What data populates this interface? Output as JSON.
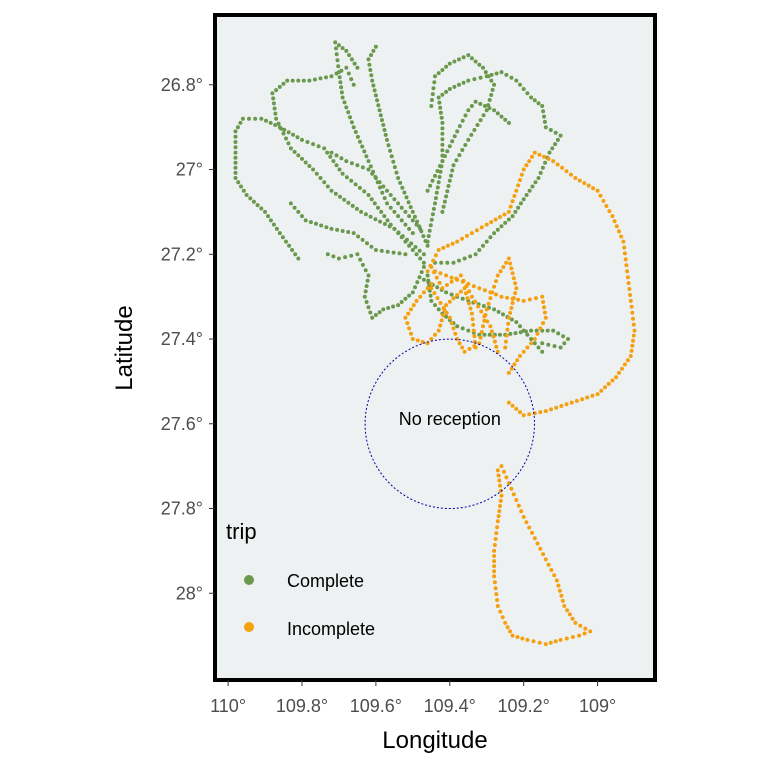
{
  "chart_data": {
    "type": "scatter",
    "xlabel": "Longitude",
    "ylabel": "Latitude",
    "x_reversed": true,
    "y_reversed": true,
    "xlim": [
      110.03,
      108.85
    ],
    "ylim": [
      26.64,
      28.2
    ],
    "x_ticks": [
      110,
      109.8,
      109.6,
      109.4,
      109.2,
      109
    ],
    "x_tick_labels": [
      "110°",
      "109.8°",
      "109.6°",
      "109.4°",
      "109.2°",
      "109°"
    ],
    "y_ticks": [
      26.8,
      27,
      27.2,
      27.4,
      27.6,
      27.8,
      28
    ],
    "y_tick_labels": [
      "26.8°",
      "27°",
      "27.2°",
      "27.4°",
      "27.6°",
      "27.8°",
      "28°"
    ],
    "panel_background": "#edf1f2",
    "grid": false,
    "legend": {
      "title": "trip",
      "placement": "bottom-left",
      "entries": [
        "Complete",
        "Incomplete"
      ]
    },
    "annotation": {
      "label": "No reception",
      "shape": "circle",
      "center": [
        109.4,
        27.6
      ],
      "radius": 0.2,
      "color": "#0000aa"
    },
    "series": [
      {
        "name": "Complete",
        "color": "#6a994e",
        "paths": [
          [
            [
              109.47,
              27.22
            ],
            [
              109.56,
              27.13
            ],
            [
              109.62,
              27.06
            ],
            [
              109.69,
              27.01
            ],
            [
              109.74,
              26.95
            ],
            [
              109.8,
              26.93
            ],
            [
              109.86,
              26.9
            ],
            [
              109.91,
              26.88
            ],
            [
              109.96,
              26.88
            ],
            [
              109.98,
              26.91
            ],
            [
              109.98,
              26.96
            ],
            [
              109.98,
              27.02
            ],
            [
              109.95,
              27.06
            ],
            [
              109.9,
              27.1
            ],
            [
              109.86,
              27.15
            ],
            [
              109.81,
              27.21
            ]
          ],
          [
            [
              109.47,
              27.2
            ],
            [
              109.55,
              27.14
            ],
            [
              109.64,
              27.1
            ],
            [
              109.72,
              27.05
            ],
            [
              109.77,
              27.0
            ],
            [
              109.83,
              26.95
            ],
            [
              109.87,
              26.88
            ],
            [
              109.88,
              26.82
            ],
            [
              109.84,
              26.79
            ],
            [
              109.78,
              26.79
            ],
            [
              109.72,
              26.78
            ],
            [
              109.68,
              26.76
            ],
            [
              109.66,
              26.8
            ]
          ],
          [
            [
              109.5,
              27.15
            ],
            [
              109.57,
              27.08
            ],
            [
              109.62,
              26.98
            ],
            [
              109.66,
              26.9
            ],
            [
              109.69,
              26.83
            ],
            [
              109.7,
              26.77
            ],
            [
              109.71,
              26.7
            ],
            [
              109.68,
              26.72
            ],
            [
              109.65,
              26.76
            ]
          ],
          [
            [
              109.46,
              27.18
            ],
            [
              109.5,
              27.1
            ],
            [
              109.54,
              27.02
            ],
            [
              109.57,
              26.93
            ],
            [
              109.59,
              26.86
            ],
            [
              109.61,
              26.79
            ],
            [
              109.62,
              26.74
            ],
            [
              109.6,
              26.71
            ]
          ],
          [
            [
              109.46,
              27.17
            ],
            [
              109.44,
              27.08
            ],
            [
              109.42,
              26.98
            ],
            [
              109.42,
              26.89
            ],
            [
              109.43,
              26.83
            ],
            [
              109.4,
              26.81
            ],
            [
              109.35,
              26.79
            ],
            [
              109.3,
              26.78
            ],
            [
              109.26,
              26.77
            ],
            [
              109.22,
              26.79
            ],
            [
              109.18,
              26.83
            ],
            [
              109.15,
              26.85
            ],
            [
              109.14,
              26.9
            ],
            [
              109.1,
              26.92
            ],
            [
              109.13,
              26.96
            ],
            [
              109.16,
              27.02
            ],
            [
              109.2,
              27.07
            ],
            [
              109.23,
              27.11
            ],
            [
              109.28,
              27.15
            ],
            [
              109.33,
              27.2
            ],
            [
              109.39,
              27.22
            ],
            [
              109.44,
              27.22
            ]
          ],
          [
            [
              109.42,
              27.1
            ],
            [
              109.39,
              26.99
            ],
            [
              109.35,
              26.93
            ],
            [
              109.3,
              26.86
            ],
            [
              109.28,
              26.8
            ],
            [
              109.31,
              26.76
            ],
            [
              109.35,
              26.73
            ],
            [
              109.4,
              26.75
            ],
            [
              109.44,
              26.78
            ],
            [
              109.45,
              26.85
            ]
          ],
          [
            [
              109.46,
              27.05
            ],
            [
              109.42,
              26.98
            ],
            [
              109.38,
              26.91
            ],
            [
              109.35,
              26.86
            ],
            [
              109.33,
              26.84
            ],
            [
              109.28,
              26.86
            ],
            [
              109.24,
              26.89
            ]
          ],
          [
            [
              109.46,
              27.25
            ],
            [
              109.45,
              27.31
            ],
            [
              109.42,
              27.34
            ],
            [
              109.38,
              27.37
            ],
            [
              109.32,
              27.39
            ],
            [
              109.25,
              27.39
            ],
            [
              109.18,
              27.38
            ],
            [
              109.12,
              27.38
            ],
            [
              109.08,
              27.4
            ],
            [
              109.1,
              27.42
            ],
            [
              109.15,
              27.41
            ]
          ],
          [
            [
              109.47,
              27.26
            ],
            [
              109.41,
              27.29
            ],
            [
              109.35,
              27.31
            ],
            [
              109.28,
              27.33
            ],
            [
              109.22,
              27.36
            ],
            [
              109.18,
              27.4
            ],
            [
              109.15,
              27.43
            ]
          ],
          [
            [
              109.47,
              27.23
            ],
            [
              109.5,
              27.29
            ],
            [
              109.54,
              27.32
            ],
            [
              109.58,
              27.33
            ],
            [
              109.61,
              27.35
            ],
            [
              109.63,
              27.3
            ],
            [
              109.62,
              27.25
            ],
            [
              109.65,
              27.2
            ],
            [
              109.7,
              27.21
            ],
            [
              109.73,
              27.2
            ]
          ],
          [
            [
              109.52,
              27.2
            ],
            [
              109.6,
              27.19
            ],
            [
              109.66,
              27.15
            ],
            [
              109.72,
              27.14
            ],
            [
              109.79,
              27.12
            ],
            [
              109.83,
              27.08
            ]
          ],
          [
            [
              109.48,
              27.14
            ],
            [
              109.55,
              27.07
            ],
            [
              109.62,
              27.0
            ],
            [
              109.68,
              26.98
            ],
            [
              109.72,
              26.96
            ]
          ]
        ]
      },
      {
        "name": "Incomplete",
        "color": "#f5a011",
        "paths": [
          [
            [
              109.46,
              27.24
            ],
            [
              109.43,
              27.19
            ],
            [
              109.38,
              27.17
            ],
            [
              109.34,
              27.15
            ],
            [
              109.3,
              27.13
            ],
            [
              109.24,
              27.1
            ],
            [
              109.22,
              27.05
            ],
            [
              109.2,
              27.0
            ],
            [
              109.17,
              26.96
            ],
            [
              109.12,
              26.98
            ],
            [
              109.06,
              27.02
            ],
            [
              109.0,
              27.05
            ],
            [
              108.96,
              27.11
            ],
            [
              108.93,
              27.17
            ],
            [
              108.92,
              27.24
            ],
            [
              108.91,
              27.31
            ],
            [
              108.9,
              27.38
            ],
            [
              108.91,
              27.44
            ],
            [
              108.95,
              27.49
            ],
            [
              109.0,
              27.53
            ],
            [
              109.07,
              27.55
            ],
            [
              109.14,
              27.57
            ],
            [
              109.2,
              27.58
            ],
            [
              109.24,
              27.55
            ]
          ],
          [
            [
              109.44,
              27.24
            ],
            [
              109.38,
              27.26
            ],
            [
              109.32,
              27.28
            ],
            [
              109.26,
              27.3
            ],
            [
              109.2,
              27.31
            ],
            [
              109.15,
              27.3
            ],
            [
              109.14,
              27.35
            ],
            [
              109.17,
              27.4
            ],
            [
              109.21,
              27.44
            ],
            [
              109.24,
              27.48
            ]
          ],
          [
            [
              109.45,
              27.28
            ],
            [
              109.4,
              27.35
            ],
            [
              109.38,
              27.4
            ],
            [
              109.36,
              27.43
            ],
            [
              109.32,
              27.41
            ],
            [
              109.3,
              27.33
            ],
            [
              109.27,
              27.25
            ],
            [
              109.24,
              27.21
            ],
            [
              109.22,
              27.28
            ],
            [
              109.24,
              27.35
            ],
            [
              109.25,
              27.42
            ]
          ],
          [
            [
              109.45,
              27.27
            ],
            [
              109.49,
              27.31
            ],
            [
              109.52,
              27.35
            ],
            [
              109.5,
              27.4
            ],
            [
              109.46,
              27.41
            ],
            [
              109.43,
              27.38
            ],
            [
              109.41,
              27.32
            ],
            [
              109.36,
              27.28
            ],
            [
              109.34,
              27.34
            ],
            [
              109.33,
              27.42
            ]
          ],
          [
            [
              109.45,
              27.23
            ],
            [
              109.42,
              27.28
            ],
            [
              109.37,
              27.25
            ],
            [
              109.34,
              27.3
            ],
            [
              109.29,
              27.37
            ],
            [
              109.27,
              27.43
            ]
          ],
          [
            [
              109.27,
              27.71
            ],
            [
              109.26,
              27.77
            ],
            [
              109.27,
              27.83
            ],
            [
              109.28,
              27.9
            ],
            [
              109.28,
              27.96
            ],
            [
              109.27,
              28.03
            ],
            [
              109.25,
              28.07
            ],
            [
              109.23,
              28.1
            ],
            [
              109.19,
              28.11
            ],
            [
              109.14,
              28.12
            ],
            [
              109.1,
              28.11
            ],
            [
              109.05,
              28.1
            ],
            [
              109.02,
              28.09
            ],
            [
              109.06,
              28.07
            ],
            [
              109.09,
              28.03
            ],
            [
              109.11,
              27.97
            ],
            [
              109.14,
              27.92
            ],
            [
              109.17,
              27.87
            ],
            [
              109.2,
              27.82
            ],
            [
              109.22,
              27.78
            ],
            [
              109.24,
              27.74
            ],
            [
              109.26,
              27.7
            ]
          ]
        ]
      }
    ]
  }
}
